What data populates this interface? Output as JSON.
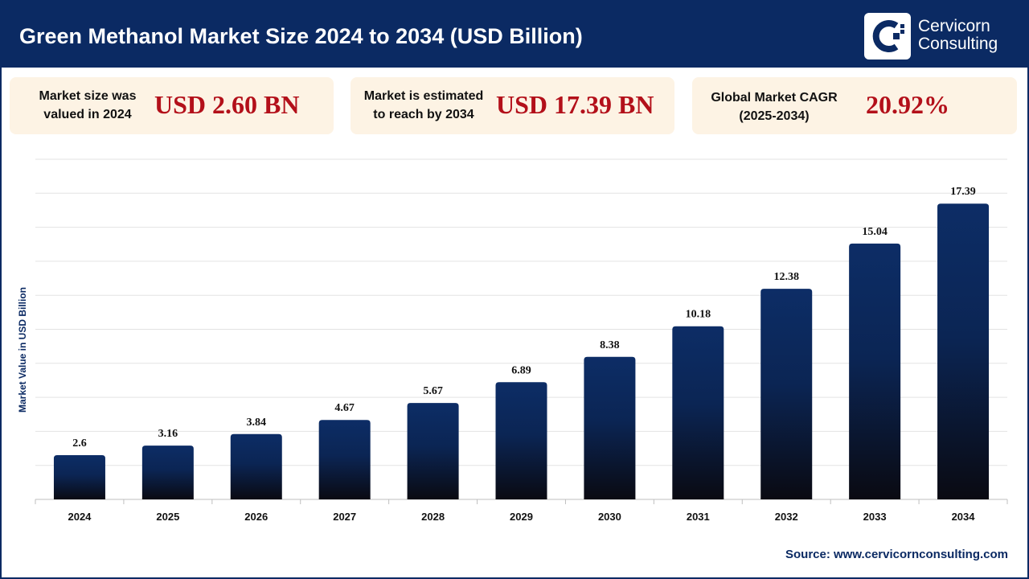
{
  "header": {
    "title": "Green Methanol Market Size 2024 to 2034 (USD Billion)",
    "logo_line1": "Cervicorn",
    "logo_line2": "Consulting",
    "logo_icon": "cervicorn-logo-icon"
  },
  "cards": [
    {
      "label_line1": "Market size was",
      "label_line2": "valued in 2024",
      "value": "USD 2.60 BN"
    },
    {
      "label_line1": "Market is estimated",
      "label_line2": "to reach by 2034",
      "value": "USD 17.39 BN"
    },
    {
      "label_line1": "Global Market CAGR",
      "label_line2": "(2025-2034)",
      "value": "20.92%"
    }
  ],
  "colors": {
    "brand": "#0b2a63",
    "accent_red": "#b3101a",
    "card_bg": "#fdf3e4",
    "bar_top": "#0d2d66",
    "bar_bottom": "#0a0a12"
  },
  "chart_data": {
    "type": "bar",
    "title": "Green Methanol Market Size 2024 to 2034 (USD Billion)",
    "xlabel": "",
    "ylabel": "Market Value in USD Billion",
    "categories": [
      "2024",
      "2025",
      "2026",
      "2027",
      "2028",
      "2029",
      "2030",
      "2031",
      "2032",
      "2033",
      "2034"
    ],
    "values": [
      2.6,
      3.16,
      3.84,
      4.67,
      5.67,
      6.89,
      8.38,
      10.18,
      12.38,
      15.04,
      17.39
    ],
    "value_labels": [
      "2.6",
      "3.16",
      "3.84",
      "4.67",
      "5.67",
      "6.89",
      "8.38",
      "10.18",
      "12.38",
      "15.04",
      "17.39"
    ],
    "ylim": [
      0,
      20
    ],
    "grid": true,
    "legend": "none"
  },
  "source": "Source: www.cervicornconsulting.com"
}
